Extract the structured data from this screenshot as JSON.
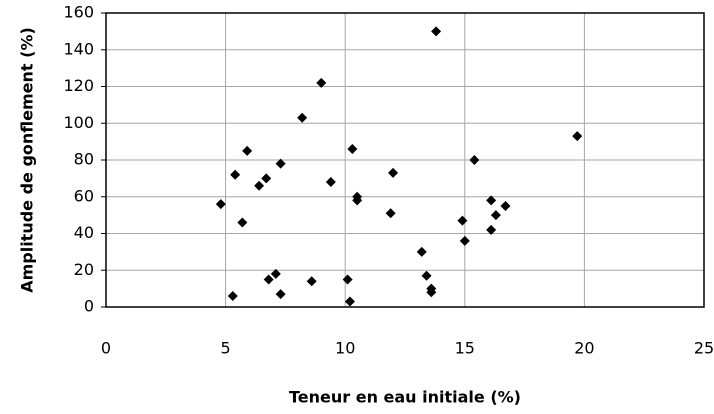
{
  "chart_data": {
    "type": "scatter",
    "x_label": "Teneur en eau initiale (%)",
    "y_label": "Amplitude de gonflement (%)",
    "color": "#000000",
    "grid": true,
    "xlim": [
      0,
      25
    ],
    "xticks": [
      0,
      5,
      10,
      15,
      20,
      25
    ],
    "ylim": [
      0,
      160
    ],
    "yticks": [
      0,
      20,
      40,
      60,
      80,
      100,
      120,
      140,
      160
    ],
    "x": [
      4.8,
      5.3,
      5.4,
      5.7,
      5.9,
      6.4,
      6.7,
      6.8,
      7.1,
      7.3,
      7.3,
      8.2,
      8.6,
      9.0,
      9.4,
      10.1,
      10.2,
      10.3,
      10.5,
      10.5,
      11.9,
      12.0,
      13.2,
      13.4,
      13.6,
      13.6,
      13.8,
      14.9,
      15.0,
      15.4,
      16.1,
      16.1,
      16.3,
      16.7,
      19.7
    ],
    "values": [
      56,
      6,
      72,
      46,
      85,
      66,
      70,
      15,
      18,
      78,
      7,
      103,
      14,
      122,
      68,
      15,
      3,
      86,
      60,
      58,
      51,
      73,
      30,
      17,
      8,
      10,
      150,
      47,
      36,
      80,
      58,
      42,
      50,
      55,
      93
    ]
  }
}
